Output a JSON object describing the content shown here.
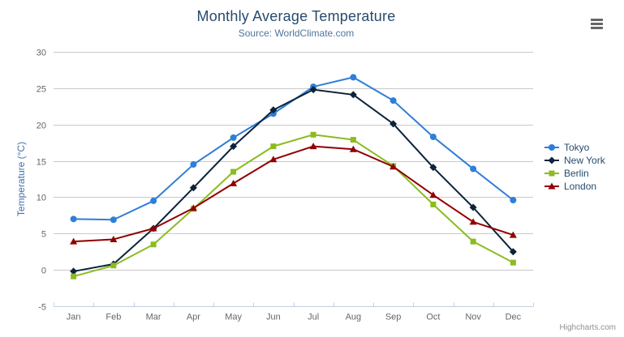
{
  "credits": "Highcharts.com",
  "icons": {
    "context_menu": "hamburger-icon"
  },
  "palette": {
    "title_color": "#274b6d",
    "subtitle_color": "#4d759e",
    "axis_label_color": "#666666",
    "yaxis_title_color": "#4572a7",
    "gridline_color": "#c9c9c9",
    "axis_line_color": "#c0d0e0",
    "legend_text_color": "#274b6d",
    "menu_icon_color": "#666666",
    "credits_color": "#909090"
  },
  "chart_data": {
    "type": "line",
    "title": "Monthly Average Temperature",
    "subtitle": "Source: WorldClimate.com",
    "categories": [
      "Jan",
      "Feb",
      "Mar",
      "Apr",
      "May",
      "Jun",
      "Jul",
      "Aug",
      "Sep",
      "Oct",
      "Nov",
      "Dec"
    ],
    "xlabel": "",
    "ylabel": "Temperature (°C)",
    "ylim": [
      -5,
      30
    ],
    "ytick_step": 5,
    "ytick_labels": [
      "-5",
      "0",
      "5",
      "10",
      "15",
      "20",
      "25",
      "30"
    ],
    "grid": true,
    "legend_position": "right",
    "series": [
      {
        "name": "Tokyo",
        "color": "#2f7ed8",
        "marker": "circle",
        "values": [
          7.0,
          6.9,
          9.5,
          14.5,
          18.2,
          21.5,
          25.2,
          26.5,
          23.3,
          18.3,
          13.9,
          9.6
        ]
      },
      {
        "name": "New York",
        "color": "#0d233a",
        "marker": "diamond",
        "values": [
          -0.2,
          0.8,
          5.7,
          11.3,
          17.0,
          22.0,
          24.8,
          24.1,
          20.1,
          14.1,
          8.6,
          2.5
        ]
      },
      {
        "name": "Berlin",
        "color": "#8bbc21",
        "marker": "square",
        "values": [
          -0.9,
          0.6,
          3.5,
          8.4,
          13.5,
          17.0,
          18.6,
          17.9,
          14.3,
          9.0,
          3.9,
          1.0
        ]
      },
      {
        "name": "London",
        "color": "#910000",
        "marker": "triangle",
        "values": [
          3.9,
          4.2,
          5.7,
          8.5,
          11.9,
          15.2,
          17.0,
          16.6,
          14.2,
          10.3,
          6.6,
          4.8
        ]
      }
    ]
  }
}
